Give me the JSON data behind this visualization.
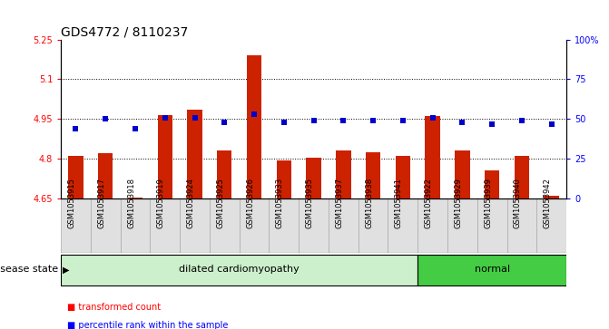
{
  "title": "GDS4772 / 8110237",
  "samples": [
    "GSM1053915",
    "GSM1053917",
    "GSM1053918",
    "GSM1053919",
    "GSM1053924",
    "GSM1053925",
    "GSM1053926",
    "GSM1053933",
    "GSM1053935",
    "GSM1053937",
    "GSM1053938",
    "GSM1053941",
    "GSM1053922",
    "GSM1053929",
    "GSM1053939",
    "GSM1053940",
    "GSM1053942"
  ],
  "bar_values": [
    4.81,
    4.82,
    4.655,
    4.965,
    4.985,
    4.83,
    5.19,
    4.795,
    4.805,
    4.83,
    4.825,
    4.81,
    4.96,
    4.83,
    4.755,
    4.81,
    4.66
  ],
  "percentile_values": [
    44,
    50,
    44,
    51,
    51,
    48,
    53,
    48,
    49,
    49,
    49,
    49,
    51,
    48,
    47,
    49,
    47
  ],
  "disease_groups": [
    {
      "label": "dilated cardiomyopathy",
      "start": 0,
      "end": 11,
      "color": "#ccf0cc"
    },
    {
      "label": "normal",
      "start": 12,
      "end": 16,
      "color": "#44cc44"
    }
  ],
  "ylim_left": [
    4.65,
    5.25
  ],
  "ylim_right": [
    0,
    100
  ],
  "yticks_left": [
    4.65,
    4.8,
    4.95,
    5.1,
    5.25
  ],
  "yticks_right": [
    0,
    25,
    50,
    75,
    100
  ],
  "ytick_labels_right": [
    "0",
    "25",
    "50",
    "75",
    "100%"
  ],
  "bar_color": "#cc2200",
  "dot_color": "#0000cc",
  "background_color": "#ffffff",
  "sample_box_color": "#e0e0e0",
  "legend_red_label": "transformed count",
  "legend_blue_label": "percentile rank within the sample",
  "disease_state_label": "disease state",
  "grid_values": [
    4.8,
    4.95,
    5.1
  ],
  "title_fontsize": 10,
  "tick_fontsize": 7,
  "label_fontsize": 8,
  "bar_width": 0.5
}
